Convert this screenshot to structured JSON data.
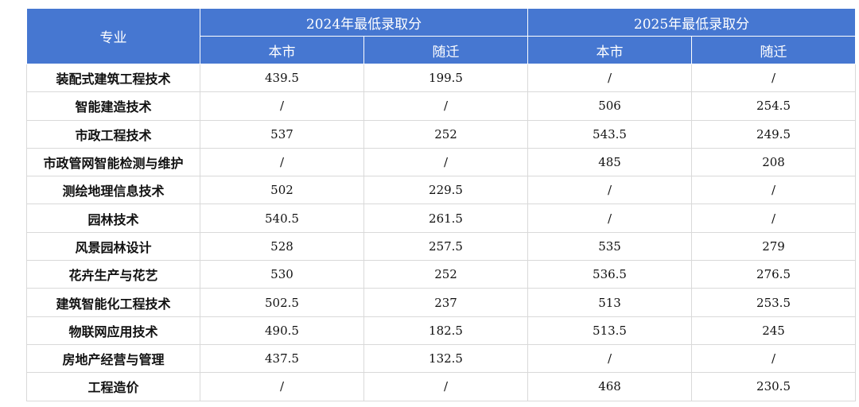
{
  "table": {
    "header": {
      "major": "专业",
      "groups": [
        "2024年最低录取分",
        "2025年最低录取分"
      ],
      "subs": [
        "本市",
        "随迁",
        "本市",
        "随迁"
      ]
    },
    "rows": [
      [
        "装配式建筑工程技术",
        "439.5",
        "199.5",
        "/",
        "/"
      ],
      [
        "智能建造技术",
        "/",
        "/",
        "506",
        "254.5"
      ],
      [
        "市政工程技术",
        "537",
        "252",
        "543.5",
        "249.5"
      ],
      [
        "市政管网智能检测与维护",
        "/",
        "/",
        "485",
        "208"
      ],
      [
        "测绘地理信息技术",
        "502",
        "229.5",
        "/",
        "/"
      ],
      [
        "园林技术",
        "540.5",
        "261.5",
        "/",
        "/"
      ],
      [
        "风景园林设计",
        "528",
        "257.5",
        "535",
        "279"
      ],
      [
        "花卉生产与花艺",
        "530",
        "252",
        "536.5",
        "276.5"
      ],
      [
        "建筑智能化工程技术",
        "502.5",
        "237",
        "513",
        "253.5"
      ],
      [
        "物联网应用技术",
        "490.5",
        "182.5",
        "513.5",
        "245"
      ],
      [
        "房地产经营与管理",
        "437.5",
        "132.5",
        "/",
        "/"
      ],
      [
        "工程造价",
        "/",
        "/",
        "468",
        "230.5"
      ]
    ]
  }
}
